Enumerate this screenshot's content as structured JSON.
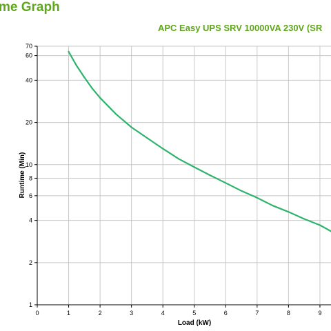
{
  "page": {
    "heading": "me Graph"
  },
  "colors": {
    "accent": "#5fa51d",
    "series": "#2db36b",
    "grid": "#c8c8c8",
    "axis": "#000000"
  },
  "chart_data": {
    "type": "line",
    "title": "APC Easy UPS SRV 10000VA 230V (SR",
    "xlabel": "Load (kW)",
    "ylabel": "Runtime (Min)",
    "xlim": [
      0,
      9.4
    ],
    "ylim": [
      1,
      70
    ],
    "yscale": "log",
    "grid": true,
    "xticks": [
      0,
      1,
      2,
      3,
      4,
      5,
      6,
      7,
      8,
      9
    ],
    "yticks": [
      1,
      2,
      4,
      6,
      8,
      10,
      20,
      40,
      60,
      70
    ],
    "series": [
      {
        "x": [
          1,
          1.25,
          1.5,
          1.75,
          2,
          2.5,
          3,
          3.5,
          4,
          4.5,
          5,
          5.5,
          6,
          6.5,
          7,
          7.5,
          8,
          8.5,
          9,
          9.4
        ],
        "y": [
          64,
          51,
          42,
          35,
          30,
          23,
          18.5,
          15.5,
          13,
          11,
          9.6,
          8.4,
          7.4,
          6.5,
          5.8,
          5.1,
          4.6,
          4.1,
          3.7,
          3.3
        ]
      }
    ]
  }
}
